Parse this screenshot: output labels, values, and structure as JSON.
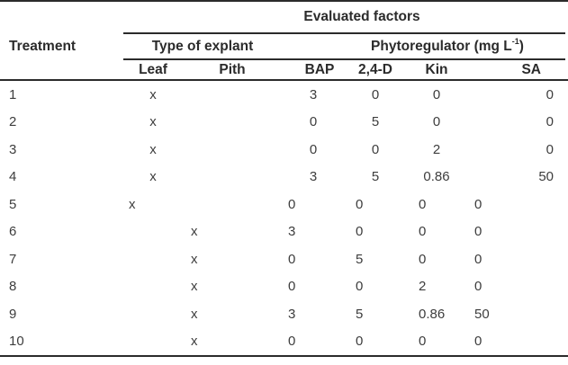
{
  "table": {
    "colors": {
      "text": "#3d3d3d",
      "header_text": "#2b2b2b",
      "rule": "#2b2b2b",
      "background": "#ffffff"
    },
    "header": {
      "evaluated_factors": "Evaluated factors",
      "treatment": "Treatment",
      "type_of_explant": "Type of explant",
      "phytoregulator_prefix": "Phytoregulator (mg L",
      "phytoregulator_sup": "-1",
      "phytoregulator_suffix": ")",
      "columns": [
        "Leaf",
        "Pith",
        "BAP",
        "2,4-D",
        "Kin",
        "SA"
      ]
    },
    "rows": [
      {
        "treatment": "1",
        "leaf": "x",
        "pith": "",
        "bap": "3",
        "d24": "0",
        "kin": "0",
        "sa": "0"
      },
      {
        "treatment": "2",
        "leaf": "x",
        "pith": "",
        "bap": "0",
        "d24": "5",
        "kin": "0",
        "sa": "0"
      },
      {
        "treatment": "3",
        "leaf": "x",
        "pith": "",
        "bap": "0",
        "d24": "0",
        "kin": "2",
        "sa": "0"
      },
      {
        "treatment": "4",
        "leaf": "x",
        "pith": "",
        "bap": "3",
        "d24": "5",
        "kin": "0.86",
        "sa": "50"
      },
      {
        "treatment": "5",
        "leaf": "x",
        "pith": "",
        "bap": "0",
        "d24": "0",
        "kin": "0",
        "sa": "0"
      },
      {
        "treatment": "6",
        "leaf": "",
        "pith": "x",
        "bap": "3",
        "d24": "0",
        "kin": "0",
        "sa": "0"
      },
      {
        "treatment": "7",
        "leaf": "",
        "pith": "x",
        "bap": "0",
        "d24": "5",
        "kin": "0",
        "sa": "0"
      },
      {
        "treatment": "8",
        "leaf": "",
        "pith": "x",
        "bap": "0",
        "d24": "0",
        "kin": "2",
        "sa": "0"
      },
      {
        "treatment": "9",
        "leaf": "",
        "pith": "x",
        "bap": "3",
        "d24": "5",
        "kin": "0.86",
        "sa": "50"
      },
      {
        "treatment": "10",
        "leaf": "",
        "pith": "x",
        "bap": "0",
        "d24": "0",
        "kin": "0",
        "sa": "0"
      }
    ]
  }
}
